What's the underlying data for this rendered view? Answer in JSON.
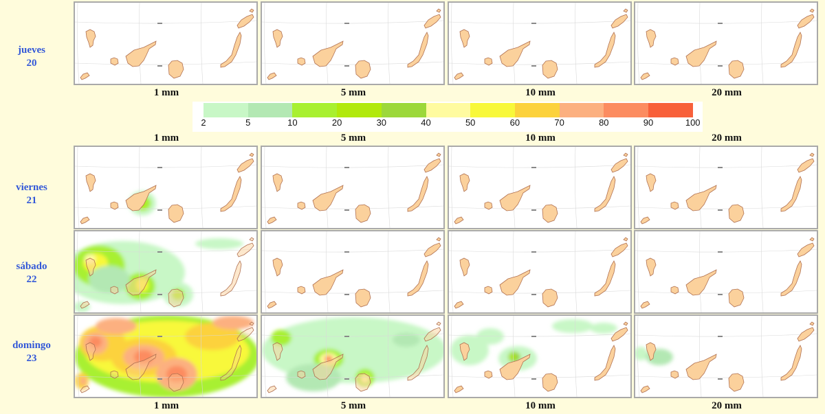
{
  "days": [
    {
      "name": "jueves",
      "num": "20"
    },
    {
      "name": "viernes",
      "num": "21"
    },
    {
      "name": "sábado",
      "num": "22"
    },
    {
      "name": "domingo",
      "num": "23"
    }
  ],
  "thresholds": [
    "1 mm",
    "5 mm",
    "10 mm",
    "20 mm"
  ],
  "legend": {
    "ticks": [
      "2",
      "5",
      "10",
      "20",
      "30",
      "40",
      "50",
      "60",
      "70",
      "80",
      "90",
      "100"
    ],
    "colors": [
      "#c8f7c6",
      "#b3e8b3",
      "#a8f030",
      "#b1e90c",
      "#9cd83a",
      "#fffba0",
      "#f8f83a",
      "#fcd23c",
      "#fcb080",
      "#fc8c60",
      "#f8603a"
    ]
  },
  "colors": {
    "land": "#fbd19c",
    "coast": "#b07050",
    "grid": "#d9d9d9",
    "label": "#3358d8"
  }
}
